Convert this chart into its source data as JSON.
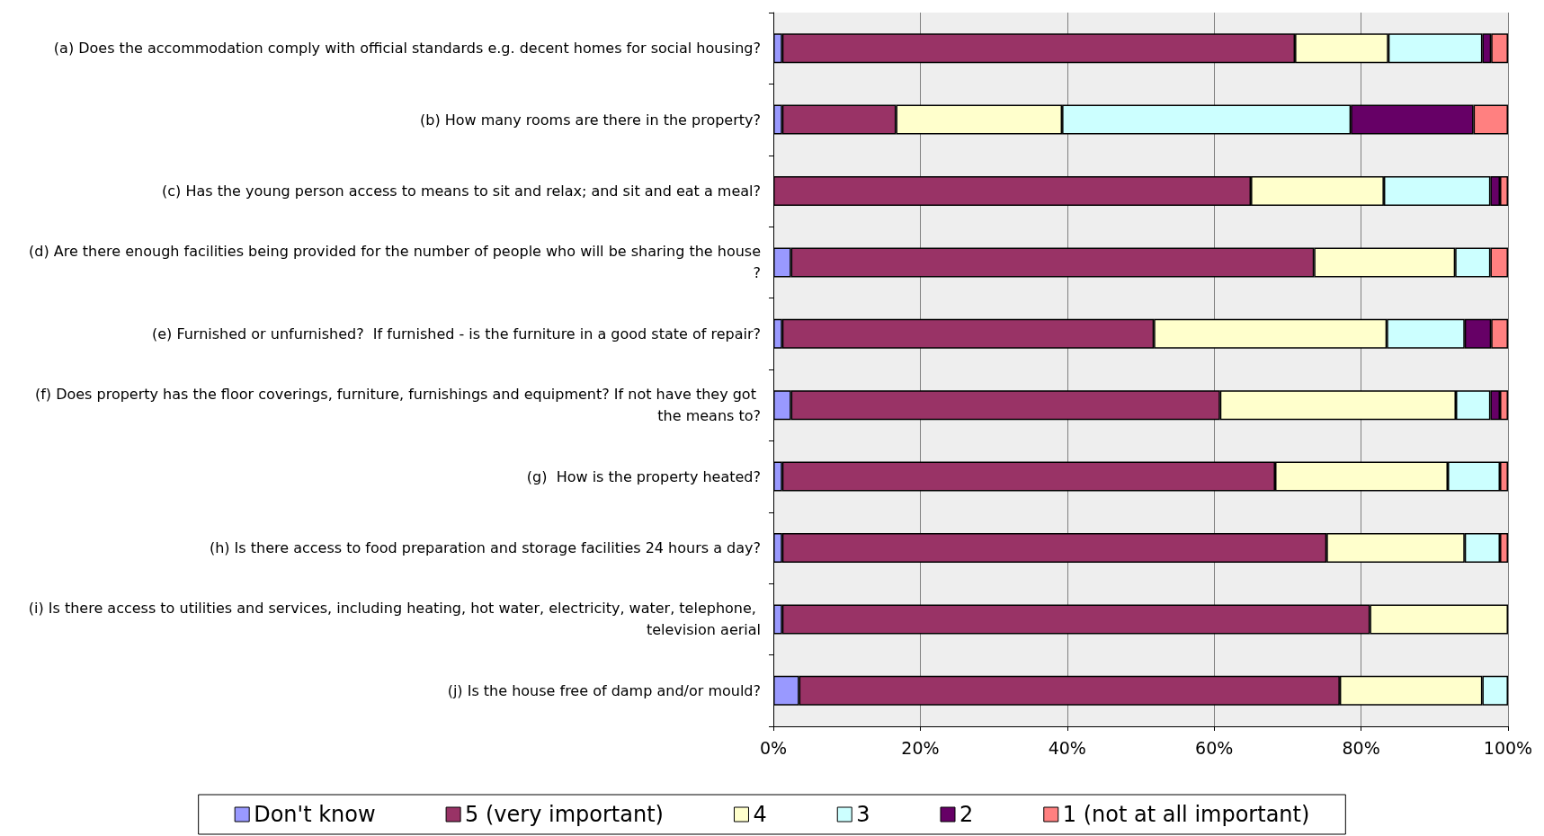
{
  "chart_data": {
    "type": "bar",
    "orientation": "horizontal",
    "stacked": true,
    "grid": "x",
    "legend": "bottom",
    "categories": [
      "(a) Does the accommodation comply with official standards e.g. decent homes for social housing?",
      "(b) How many rooms are there in the property?",
      "(c) Has the young person access to means to sit and relax; and sit and eat a meal?",
      "(d) Are there enough facilities being provided for the number of people who will be sharing the house?",
      "(e) Furnished or unfurnished?  If furnished - is the furniture in a good state of repair?",
      "(f) Does property has the floor coverings, furniture, furnishings and equipment? If not have they got the means to?",
      "(g)  How is the property heated?",
      "(h) Is there access to food preparation and storage facilities 24 hours a day?",
      "(i) Is there access to utilities and services, including heating, hot water, electricity, water, telephone, television aerial",
      "(j) Is the house free of damp and/or mould?"
    ],
    "xlim": [
      0,
      100
    ],
    "xticks": [
      {
        "value": 0,
        "label": "0%"
      },
      {
        "value": 20,
        "label": "20%"
      },
      {
        "value": 40,
        "label": "40%"
      },
      {
        "value": 60,
        "label": "60%"
      },
      {
        "value": 80,
        "label": "80%"
      },
      {
        "value": 100,
        "label": "100%"
      }
    ],
    "series": [
      {
        "name": "Don't know",
        "color": "#9999ff",
        "values": [
          1.2,
          1.2,
          null,
          2.4,
          1.2,
          2.4,
          1.2,
          1.2,
          1.2,
          3.5
        ]
      },
      {
        "name": "5 (very important)",
        "color": "#993366",
        "values": [
          69.8,
          15.5,
          65.0,
          71.2,
          50.6,
          58.4,
          67.1,
          74.1,
          80.0,
          73.6
        ]
      },
      {
        "name": "4",
        "color": "#ffffcc",
        "values": [
          12.7,
          22.6,
          18.1,
          19.2,
          31.7,
          32.1,
          23.5,
          18.8,
          18.8,
          19.4
        ]
      },
      {
        "name": "3",
        "color": "#ccffff",
        "values": [
          12.8,
          39.3,
          14.5,
          4.8,
          10.6,
          4.7,
          7.1,
          4.8,
          null,
          3.5
        ]
      },
      {
        "name": "2",
        "color": "#660066",
        "values": [
          1.2,
          16.7,
          1.3,
          null,
          3.6,
          1.3,
          null,
          null,
          null,
          null
        ]
      },
      {
        "name": "1 (not at all important)",
        "color": "#ff8080",
        "values": [
          2.3,
          4.7,
          1.1,
          2.4,
          2.3,
          1.1,
          1.1,
          1.1,
          null,
          null
        ]
      }
    ]
  }
}
